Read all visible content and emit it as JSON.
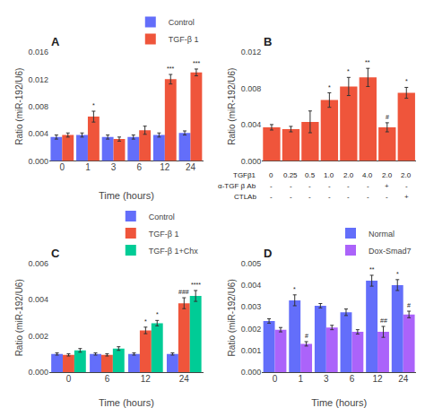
{
  "chart_data": [
    {
      "type": "bar",
      "title": "A",
      "xlabel": "Time (hours)",
      "ylabel": "Ratio (miR-192/U6)",
      "categories": [
        "0",
        "1",
        "3",
        "6",
        "12",
        "24"
      ],
      "series": [
        {
          "name": "Control",
          "color": "#636efa",
          "values": [
            0.0035,
            0.0038,
            0.0035,
            0.0035,
            0.0038,
            0.0041
          ],
          "error": [
            0.0003,
            0.0003,
            0.0003,
            0.0003,
            0.0003,
            0.0003
          ]
        },
        {
          "name": "TGF-β 1",
          "color": "#ef553b",
          "values": [
            0.0038,
            0.0065,
            0.0032,
            0.0045,
            0.012,
            0.013
          ],
          "error": [
            0.0003,
            0.0008,
            0.0003,
            0.0006,
            0.0007,
            0.0005
          ],
          "significance": [
            null,
            "*",
            null,
            null,
            "***",
            "***"
          ]
        }
      ],
      "ylim": [
        0,
        0.016
      ],
      "yticks": [
        {
          "value": 0,
          "label": "0.000"
        },
        0.004,
        0.008,
        0.012,
        0.016
      ],
      "grid": false,
      "legend": "upper right"
    },
    {
      "type": "bar",
      "title": "B",
      "ylabel": "Ratio (miR-192/U6)",
      "categories": [
        null,
        null,
        null,
        null,
        null,
        null,
        null,
        null
      ],
      "x_label_rows": [
        {
          "label": "TGFβ1",
          "values": [
            "0",
            "0.25",
            "0.5",
            "1.0",
            "2.0",
            "4.0",
            "2.0",
            "2.0"
          ]
        },
        {
          "label": "α-TGF β Ab",
          "values": [
            "-",
            "-",
            "-",
            "-",
            "-",
            "-",
            "+",
            "-"
          ]
        },
        {
          "label": "CTLAb",
          "values": [
            "-",
            "-",
            "-",
            "-",
            "-",
            "-",
            "-",
            "+"
          ]
        }
      ],
      "series": [
        {
          "color": "#ef553b",
          "values": [
            0.0037,
            0.0035,
            0.0043,
            0.0067,
            0.0082,
            0.0092,
            0.0037,
            0.0075
          ],
          "error": [
            0.0003,
            0.0003,
            0.0012,
            0.0008,
            0.001,
            0.001,
            0.0005,
            0.0006
          ],
          "significance": [
            null,
            null,
            null,
            "*",
            "*",
            "**",
            "#",
            "*"
          ]
        }
      ],
      "ylim": [
        0,
        0.012
      ],
      "yticks": [
        {
          "value": 0,
          "label": "0.000"
        },
        0.004,
        0.008,
        0.012
      ],
      "grid": false
    },
    {
      "type": "bar",
      "title": "C",
      "xlabel": "Time (hours)",
      "ylabel": "Ratio (miR-192/U6)",
      "categories": [
        "0",
        "6",
        "12",
        "24"
      ],
      "series": [
        {
          "name": "Control",
          "color": "#636efa",
          "values": [
            0.001,
            0.001,
            0.001,
            0.001
          ],
          "error": [
            6e-05,
            6e-05,
            6e-05,
            6e-05
          ]
        },
        {
          "name": "TGF-β 1",
          "color": "#ef553b",
          "values": [
            0.00095,
            0.00095,
            0.0023,
            0.0038
          ],
          "error": [
            6e-05,
            6e-05,
            0.00018,
            0.0003
          ],
          "significance": [
            null,
            null,
            "*",
            "###"
          ]
        },
        {
          "name": "TGF-β 1+Chx",
          "color": "#00cc96",
          "values": [
            0.0012,
            0.0013,
            0.0027,
            0.0042
          ],
          "error": [
            0.0001,
            0.0001,
            0.00015,
            0.0003
          ],
          "significance": [
            null,
            null,
            "*",
            "****"
          ]
        }
      ],
      "ylim": [
        0,
        0.006
      ],
      "yticks": [
        {
          "value": 0,
          "label": "0.000"
        },
        0.002,
        0.004,
        0.006
      ],
      "grid": false,
      "legend": "upper right"
    },
    {
      "type": "bar",
      "title": "D",
      "xlabel": "Time (hours)",
      "ylabel": "Ratio (miR-192/U6)",
      "categories": [
        "0",
        "1",
        "3",
        "6",
        "12",
        "24"
      ],
      "series": [
        {
          "name": "Normal",
          "color": "#636efa",
          "values": [
            0.00235,
            0.0033,
            0.00305,
            0.00275,
            0.0042,
            0.004
          ],
          "error": [
            0.0001,
            0.00025,
            0.0001,
            0.00015,
            0.00025,
            0.00025
          ],
          "significance": [
            null,
            "*",
            null,
            null,
            "**",
            "*"
          ]
        },
        {
          "name": "Dox-Smad7",
          "color": "#ab63fa",
          "values": [
            0.00195,
            0.0013,
            0.00205,
            0.00185,
            0.00185,
            0.00265
          ],
          "error": [
            0.0001,
            0.0001,
            0.0001,
            0.0001,
            0.00025,
            0.00015
          ],
          "significance": [
            null,
            "#",
            null,
            null,
            "##",
            "#"
          ]
        }
      ],
      "ylim": [
        0,
        0.005
      ],
      "yticks": [
        {
          "value": 0,
          "label": "0.000"
        },
        0.001,
        0.002,
        0.003,
        0.004,
        0.005
      ],
      "grid": false,
      "legend": "upper right"
    }
  ]
}
